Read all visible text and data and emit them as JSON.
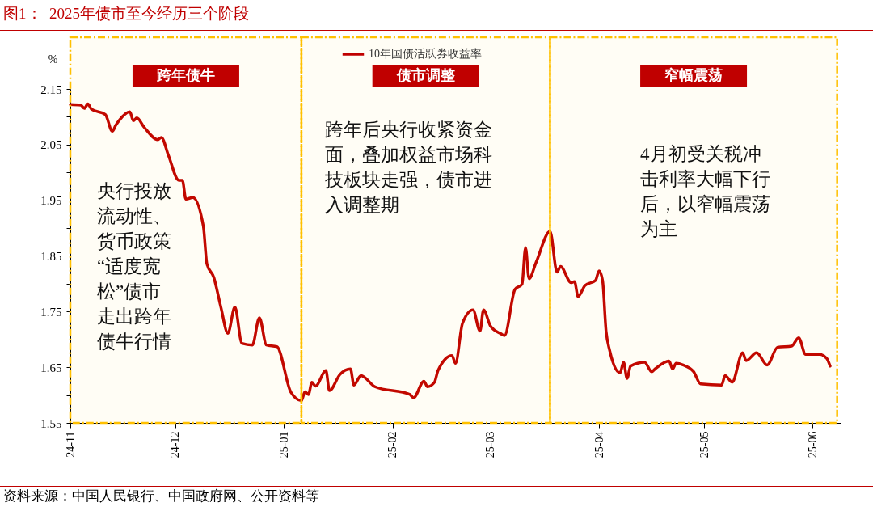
{
  "chart_data": {
    "type": "line",
    "title": "图1：  2025年债市至今经历三个阶段",
    "ylabel": "%",
    "x": [
      "2024-11-01",
      "2024-11-04",
      "2024-11-05",
      "2024-11-06",
      "2024-11-07",
      "2024-11-11",
      "2024-11-13",
      "2024-11-14",
      "2024-11-15",
      "2024-11-18",
      "2024-11-19",
      "2024-11-20",
      "2024-11-22",
      "2024-11-26",
      "2024-11-27",
      "2024-11-29",
      "2024-12-02",
      "2024-12-03",
      "2024-12-04",
      "2024-12-06",
      "2024-12-09",
      "2024-12-10",
      "2024-12-12",
      "2024-12-14",
      "2024-12-16",
      "2024-12-18",
      "2024-12-20",
      "2024-12-23",
      "2024-12-25",
      "2024-12-27",
      "2024-12-30",
      "2025-01-03",
      "2025-01-06",
      "2025-01-07",
      "2025-01-08",
      "2025-01-09",
      "2025-01-10",
      "2025-01-13",
      "2025-01-14",
      "2025-01-17",
      "2025-01-20",
      "2025-01-21",
      "2025-01-23",
      "2025-01-27",
      "2025-02-06",
      "2025-02-07",
      "2025-02-10",
      "2025-02-11",
      "2025-02-13",
      "2025-02-14",
      "2025-02-18",
      "2025-02-19",
      "2025-02-21",
      "2025-02-24",
      "2025-02-26",
      "2025-02-27",
      "2025-03-01",
      "2025-03-04",
      "2025-03-05",
      "2025-03-08",
      "2025-03-10",
      "2025-03-11",
      "2025-03-12",
      "2025-03-14",
      "2025-03-18",
      "2025-03-20",
      "2025-03-21",
      "2025-03-24",
      "2025-03-25",
      "2025-03-26",
      "2025-03-28",
      "2025-03-31",
      "2025-04-01",
      "2025-04-02",
      "2025-04-03",
      "2025-04-04",
      "2025-04-07",
      "2025-04-08",
      "2025-04-09",
      "2025-04-10",
      "2025-04-14",
      "2025-04-16",
      "2025-04-17",
      "2025-04-21",
      "2025-04-22",
      "2025-04-23",
      "2025-04-25",
      "2025-04-28",
      "2025-04-30",
      "2025-05-06",
      "2025-05-07",
      "2025-05-09",
      "2025-05-12",
      "2025-05-13",
      "2025-05-16",
      "2025-05-19",
      "2025-05-22",
      "2025-05-26",
      "2025-05-28",
      "2025-05-30",
      "2025-06-03",
      "2025-06-05",
      "2025-06-06"
    ],
    "series": [
      {
        "name": "10年国债活跃券收益率",
        "color": "#c00000",
        "values": [
          2.122,
          2.121,
          2.115,
          2.123,
          2.114,
          2.104,
          2.074,
          2.085,
          2.094,
          2.109,
          2.093,
          2.098,
          2.082,
          2.059,
          2.063,
          2.031,
          1.986,
          1.986,
          1.952,
          1.955,
          1.903,
          1.836,
          1.811,
          1.758,
          1.711,
          1.758,
          1.693,
          1.69,
          1.739,
          1.69,
          1.687,
          1.605,
          1.59,
          1.606,
          1.601,
          1.623,
          1.616,
          1.644,
          1.608,
          1.637,
          1.647,
          1.618,
          1.635,
          1.615,
          1.601,
          1.595,
          1.625,
          1.615,
          1.623,
          1.644,
          1.671,
          1.657,
          1.729,
          1.753,
          1.715,
          1.753,
          1.724,
          1.71,
          1.707,
          1.79,
          1.799,
          1.865,
          1.809,
          1.838,
          1.894,
          1.821,
          1.831,
          1.802,
          1.804,
          1.777,
          1.797,
          1.806,
          1.823,
          1.806,
          1.715,
          1.681,
          1.64,
          1.659,
          1.63,
          1.652,
          1.659,
          1.642,
          1.647,
          1.661,
          1.647,
          1.657,
          1.654,
          1.642,
          1.62,
          1.618,
          1.635,
          1.623,
          1.676,
          1.662,
          1.676,
          1.654,
          1.686,
          1.688,
          1.703,
          1.673,
          1.673,
          1.666,
          1.652
        ]
      }
    ],
    "xlim": [
      "2024-11-01",
      "2025-06-09"
    ],
    "xticks": [
      {
        "value": "2024-11-01",
        "label": "24-11"
      },
      {
        "value": "2024-12-01",
        "label": "24-12"
      },
      {
        "value": "2025-01-01",
        "label": "25-01"
      },
      {
        "value": "2025-02-01",
        "label": "25-02"
      },
      {
        "value": "2025-03-01",
        "label": "25-03"
      },
      {
        "value": "2025-04-01",
        "label": "25-04"
      },
      {
        "value": "2025-05-01",
        "label": "25-05"
      },
      {
        "value": "2025-06-01",
        "label": "25-06"
      }
    ],
    "ylim": [
      1.55,
      2.15
    ],
    "yticks": [
      1.55,
      {
        "value": 1.6,
        "label": null
      },
      1.65,
      {
        "value": 1.7,
        "label": null
      },
      1.75,
      {
        "value": 1.8,
        "label": null
      },
      1.85,
      {
        "value": 1.9,
        "label": null
      },
      1.95,
      {
        "value": 2.0,
        "label": null
      },
      2.05,
      {
        "value": 2.1,
        "label": null
      },
      2.15
    ],
    "bands": [
      {
        "axis": "x",
        "from": "2024-11-01",
        "to": "2025-01-06",
        "label": "跨年债牛",
        "color": "#ffc000"
      },
      {
        "axis": "x",
        "from": "2025-01-06",
        "to": "2025-03-18",
        "label": "债市调整",
        "color": "#ffc000"
      },
      {
        "axis": "x",
        "from": "2025-03-18",
        "to": "2025-06-08",
        "label": "窄幅震荡",
        "color": "#ffc000"
      }
    ],
    "annotations": [
      "央行投放流动性、货币政策“适度宽松”债市走出跨年债牛行情",
      "跨年后央行收紧资金面，叠加权益市场科技板块走强，债市进入调整期",
      "4月初受关税冲击利率大幅下行后，以窄幅震荡为主",
      "资料来源：中国人民银行、中国政府网、公开资料等"
    ],
    "legend": "top",
    "grid": false,
    "line_style": "solid",
    "marker": "none"
  }
}
